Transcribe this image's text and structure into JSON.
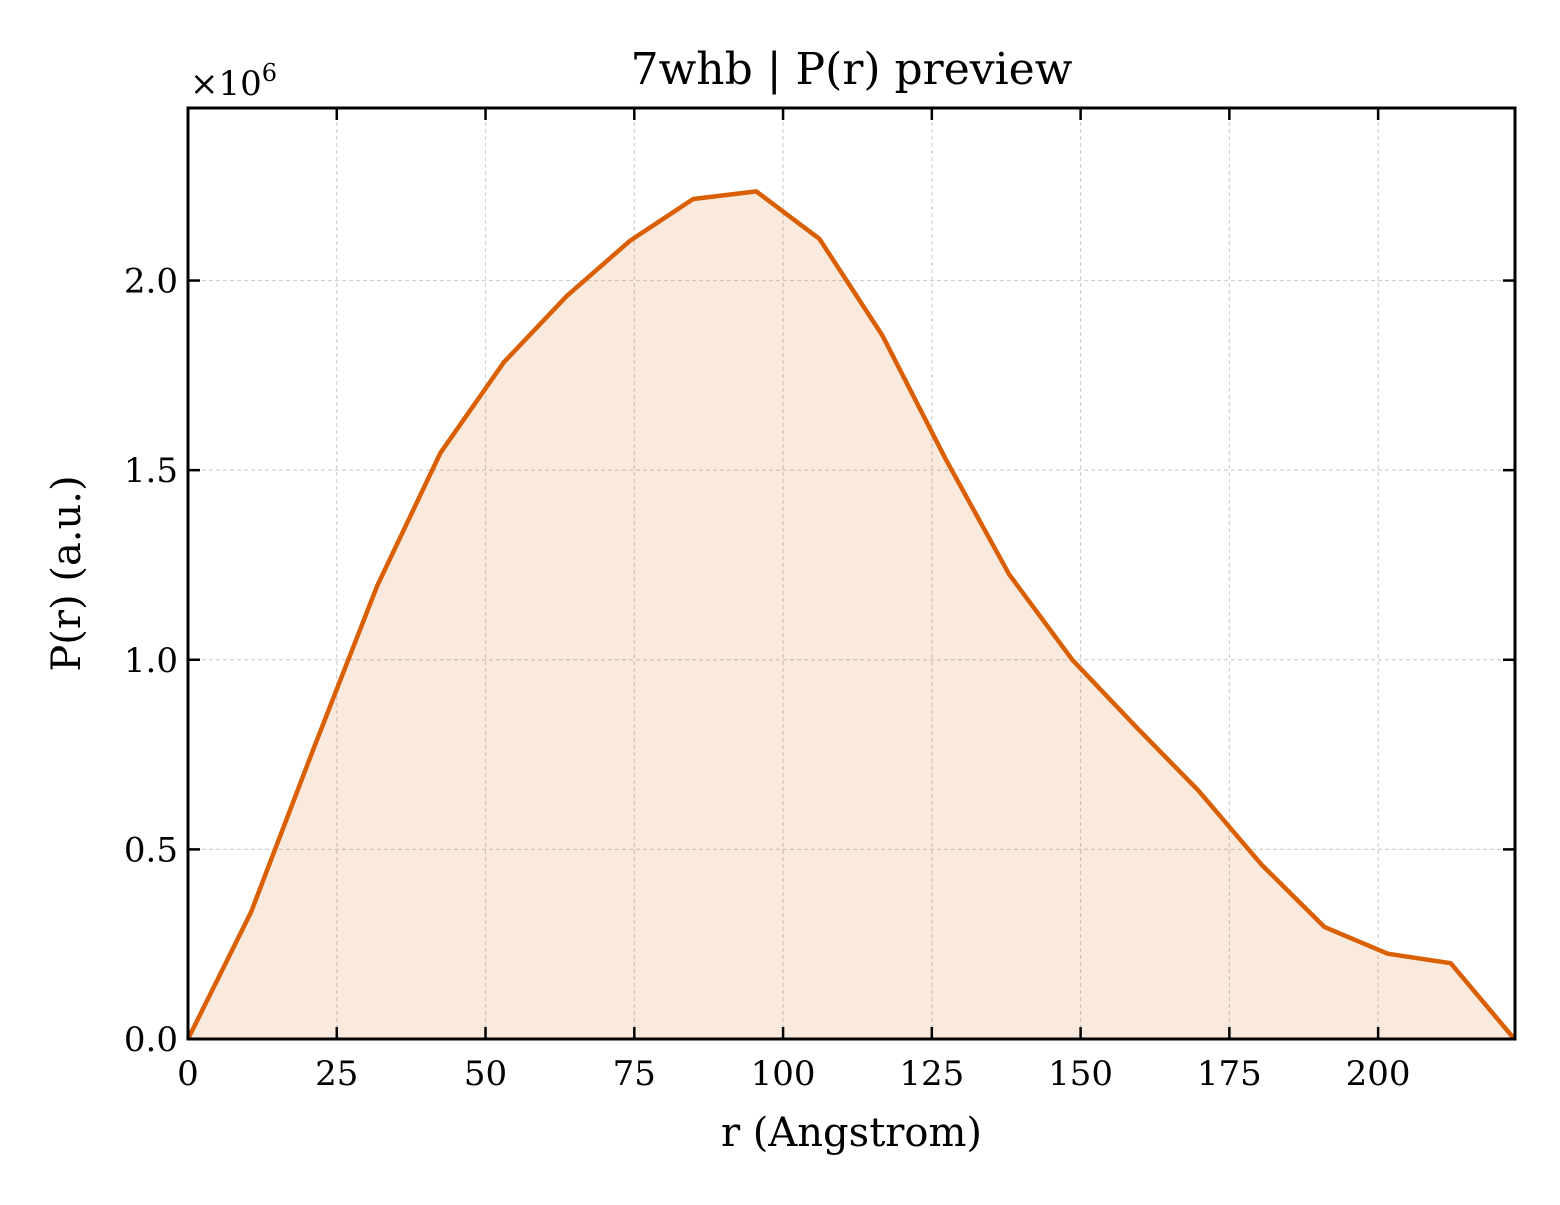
{
  "chart_data": {
    "type": "area",
    "title": "7whb | P(r) preview",
    "xlabel": "r (Angstrom)",
    "ylabel": "P(r) (a.u.)",
    "y_offset_base": "×10",
    "y_offset_exp": "6",
    "y_multiplier": 1000000,
    "xlim": [
      0,
      223
    ],
    "ylim": [
      0,
      2.455
    ],
    "xticks": [
      0,
      25,
      50,
      75,
      100,
      125,
      150,
      175,
      200
    ],
    "xtick_labels": [
      "0",
      "25",
      "50",
      "75",
      "100",
      "125",
      "150",
      "175",
      "200"
    ],
    "yticks": [
      0,
      0.5,
      1.0,
      1.5,
      2.0
    ],
    "ytick_labels": [
      "0.0",
      "0.5",
      "1.0",
      "1.5",
      "2.0"
    ],
    "grid": true,
    "legend": "none",
    "series": [
      {
        "color": "#d95f02",
        "fill_color": "#d95f02",
        "fill_opacity": 0.13,
        "x": [
          0,
          10.6,
          21.2,
          31.8,
          42.4,
          53.1,
          63.7,
          74.3,
          84.9,
          95.5,
          106.1,
          116.7,
          127.3,
          138.0,
          148.6,
          159.2,
          169.8,
          180.4,
          191.0,
          201.6,
          212.2,
          222.9
        ],
        "y": [
          0.0,
          0.335,
          0.77,
          1.195,
          1.545,
          1.785,
          1.96,
          2.105,
          2.215,
          2.235,
          2.11,
          1.855,
          1.53,
          1.225,
          1.0,
          0.825,
          0.655,
          0.46,
          0.295,
          0.225,
          0.2,
          0.0
        ]
      }
    ]
  }
}
